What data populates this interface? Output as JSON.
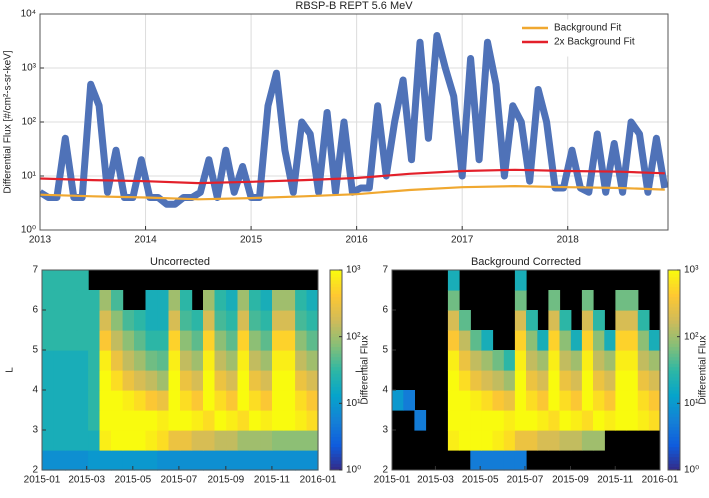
{
  "chart_data": [
    {
      "type": "line",
      "title": "RBSP-B REPT 5.6 MeV",
      "ylabel": "Differential Flux [#/cm²-s-sr-keV]",
      "yscale": "log",
      "grid": true,
      "legend": "upper right",
      "xlim": [
        2013,
        2018.95
      ],
      "xticks": [
        2013,
        2014,
        2015,
        2016,
        2017,
        2018
      ],
      "ylim": [
        1,
        10000
      ],
      "yticks": [
        {
          "value": 1,
          "label": "10⁰"
        },
        {
          "value": 10,
          "label": "10¹"
        },
        {
          "value": 100,
          "label": "10²"
        },
        {
          "value": 1000,
          "label": "10³"
        },
        {
          "value": 10000,
          "label": "10⁴"
        }
      ],
      "series": [
        {
          "color": "#4f72b8",
          "x": [
            2013,
            2013.08,
            2013.16,
            2013.24,
            2013.32,
            2013.4,
            2013.48,
            2013.56,
            2013.64,
            2013.72,
            2013.8,
            2013.88,
            2013.96,
            2014.04,
            2014.12,
            2014.2,
            2014.28,
            2014.36,
            2014.44,
            2014.52,
            2014.6,
            2014.68,
            2014.76,
            2014.84,
            2014.92,
            2015,
            2015.08,
            2015.16,
            2015.24,
            2015.32,
            2015.4,
            2015.48,
            2015.56,
            2015.64,
            2015.72,
            2015.8,
            2015.88,
            2015.96,
            2016.04,
            2016.12,
            2016.2,
            2016.28,
            2016.36,
            2016.44,
            2016.52,
            2016.6,
            2016.68,
            2016.76,
            2016.84,
            2016.92,
            2017,
            2017.08,
            2017.16,
            2017.24,
            2017.32,
            2017.4,
            2017.48,
            2017.56,
            2017.64,
            2017.72,
            2017.8,
            2017.88,
            2017.96,
            2018.04,
            2018.12,
            2018.2,
            2018.28,
            2018.36,
            2018.44,
            2018.52,
            2018.6,
            2018.68,
            2018.76,
            2018.84,
            2018.92
          ],
          "values": [
            5,
            4,
            4,
            50,
            4,
            4,
            500,
            200,
            5,
            30,
            4,
            4,
            20,
            4,
            4,
            3,
            3,
            4,
            4,
            5,
            20,
            4,
            30,
            5,
            15,
            4,
            4,
            200,
            800,
            30,
            5,
            100,
            60,
            5,
            150,
            5,
            100,
            5,
            6,
            6,
            200,
            10,
            100,
            600,
            20,
            3000,
            50,
            4000,
            1000,
            300,
            10,
            1500,
            20,
            3000,
            500,
            10,
            200,
            100,
            8,
            400,
            100,
            6,
            6,
            30,
            6,
            5,
            60,
            5,
            40,
            5,
            100,
            60,
            5,
            50,
            6
          ]
        },
        {
          "name": "Background Fit",
          "color": "#f0a830",
          "x": [
            2013,
            2013.5,
            2014,
            2014.5,
            2015,
            2015.5,
            2016,
            2016.5,
            2017,
            2017.5,
            2018,
            2018.5,
            2018.92
          ],
          "values": [
            4.5,
            4.2,
            4,
            3.7,
            3.9,
            4.2,
            4.6,
            5.5,
            6.2,
            6.5,
            6.2,
            6,
            5.6
          ]
        },
        {
          "name": "2x Background Fit",
          "color": "#e3202a",
          "x": [
            2013,
            2013.5,
            2014,
            2014.5,
            2015,
            2015.5,
            2016,
            2016.5,
            2017,
            2017.5,
            2018,
            2018.5,
            2018.92
          ],
          "values": [
            9,
            8.4,
            8,
            7.4,
            7.8,
            8.4,
            9.2,
            11,
            12.4,
            13,
            12.4,
            12,
            11.2
          ]
        }
      ]
    },
    {
      "type": "heatmap",
      "title": "Uncorrected",
      "ylabel": "L",
      "nan_color": "#000000",
      "colormap": [
        "#352a87",
        "#0f5cdd",
        "#1481d6",
        "#06a4ca",
        "#2eb7a4",
        "#87bf77",
        "#d1bb59",
        "#fec832",
        "#f9fb0e"
      ],
      "colorbar": {
        "label": "Differential Flux",
        "scale": "log",
        "lim": [
          1,
          1000
        ],
        "ticks": [
          {
            "value": 1,
            "label": "10⁰"
          },
          {
            "value": 10,
            "label": "10¹"
          },
          {
            "value": 100,
            "label": "10²"
          },
          {
            "value": 1000,
            "label": "10³"
          }
        ]
      },
      "xlim": [
        2015,
        2016
      ],
      "xticks": [
        {
          "value": 2015,
          "label": "2015-01"
        },
        {
          "value": 2015.162,
          "label": "2015-03"
        },
        {
          "value": 2015.329,
          "label": "2015-05"
        },
        {
          "value": 2015.496,
          "label": "2015-07"
        },
        {
          "value": 2015.666,
          "label": "2015-09"
        },
        {
          "value": 2015.833,
          "label": "2015-11"
        },
        {
          "value": 2016,
          "label": "2016-01"
        }
      ],
      "ylim": [
        2,
        7
      ],
      "yticks": [
        2,
        3,
        4,
        5,
        6,
        7
      ],
      "x": [
        2015.021,
        2015.063,
        2015.104,
        2015.146,
        2015.188,
        2015.229,
        2015.271,
        2015.313,
        2015.354,
        2015.396,
        2015.438,
        2015.479,
        2015.521,
        2015.563,
        2015.604,
        2015.646,
        2015.688,
        2015.729,
        2015.771,
        2015.813,
        2015.854,
        2015.896,
        2015.938,
        2015.979
      ],
      "y": [
        2.25,
        2.75,
        3.25,
        3.75,
        4.25,
        4.75,
        5.25,
        5.75,
        6.25,
        6.75
      ],
      "z": [
        [
          8,
          8,
          8,
          8,
          10,
          10,
          10,
          10,
          10,
          10,
          8,
          8,
          8,
          8,
          8,
          8,
          8,
          8,
          8,
          8,
          8,
          8,
          8,
          8
        ],
        [
          20,
          20,
          20,
          20,
          20,
          800,
          1000,
          1000,
          1000,
          800,
          600,
          300,
          300,
          200,
          200,
          150,
          150,
          100,
          100,
          100,
          80,
          80,
          80,
          80
        ],
        [
          20,
          20,
          20,
          20,
          30,
          1000,
          1000,
          1000,
          1000,
          1000,
          800,
          1000,
          1000,
          800,
          600,
          1000,
          800,
          600,
          1000,
          800,
          1000,
          1000,
          800,
          600
        ],
        [
          20,
          20,
          20,
          20,
          30,
          1000,
          1000,
          800,
          600,
          400,
          300,
          1000,
          600,
          400,
          1000,
          600,
          400,
          1000,
          600,
          400,
          1000,
          1000,
          600,
          400
        ],
        [
          20,
          20,
          20,
          20,
          30,
          1000,
          600,
          300,
          200,
          150,
          100,
          1000,
          300,
          200,
          1000,
          300,
          200,
          1000,
          300,
          200,
          1000,
          1000,
          300,
          200
        ],
        [
          20,
          20,
          20,
          20,
          30,
          800,
          300,
          150,
          100,
          60,
          50,
          800,
          150,
          100,
          800,
          150,
          100,
          800,
          150,
          100,
          800,
          800,
          150,
          100
        ],
        [
          30,
          30,
          30,
          30,
          30,
          400,
          150,
          80,
          50,
          30,
          30,
          500,
          80,
          50,
          500,
          80,
          50,
          500,
          80,
          50,
          500,
          500,
          80,
          50
        ],
        [
          30,
          30,
          30,
          30,
          30,
          200,
          80,
          40,
          30,
          20,
          20,
          200,
          40,
          30,
          200,
          40,
          30,
          200,
          40,
          30,
          200,
          200,
          40,
          30
        ],
        [
          30,
          30,
          30,
          30,
          30,
          100,
          40,
          null,
          null,
          20,
          20,
          100,
          30,
          null,
          100,
          30,
          20,
          100,
          30,
          20,
          100,
          100,
          30,
          20
        ],
        [
          30,
          30,
          30,
          30,
          null,
          null,
          null,
          null,
          null,
          null,
          null,
          null,
          null,
          null,
          null,
          null,
          null,
          null,
          null,
          null,
          null,
          null,
          null,
          null
        ]
      ]
    },
    {
      "type": "heatmap",
      "title": "Background Corrected",
      "ylabel": "L",
      "nan_color": "#000000",
      "colormap": [
        "#352a87",
        "#0f5cdd",
        "#1481d6",
        "#06a4ca",
        "#2eb7a4",
        "#87bf77",
        "#d1bb59",
        "#fec832",
        "#f9fb0e"
      ],
      "colorbar": {
        "label": "Differential Flux",
        "scale": "log",
        "lim": [
          1,
          1000
        ],
        "ticks": [
          {
            "value": 1,
            "label": "10⁰"
          },
          {
            "value": 10,
            "label": "10¹"
          },
          {
            "value": 100,
            "label": "10²"
          },
          {
            "value": 1000,
            "label": "10³"
          }
        ]
      },
      "xlim": [
        2015,
        2016
      ],
      "xticks": [
        {
          "value": 2015,
          "label": "2015-01"
        },
        {
          "value": 2015.162,
          "label": "2015-03"
        },
        {
          "value": 2015.329,
          "label": "2015-05"
        },
        {
          "value": 2015.496,
          "label": "2015-07"
        },
        {
          "value": 2015.666,
          "label": "2015-09"
        },
        {
          "value": 2015.833,
          "label": "2015-11"
        },
        {
          "value": 2016,
          "label": "2016-01"
        }
      ],
      "ylim": [
        2,
        7
      ],
      "yticks": [
        2,
        3,
        4,
        5,
        6,
        7
      ],
      "x": [
        2015.021,
        2015.063,
        2015.104,
        2015.146,
        2015.188,
        2015.229,
        2015.271,
        2015.313,
        2015.354,
        2015.396,
        2015.438,
        2015.479,
        2015.521,
        2015.563,
        2015.604,
        2015.646,
        2015.688,
        2015.729,
        2015.771,
        2015.813,
        2015.854,
        2015.896,
        2015.938,
        2015.979
      ],
      "y": [
        2.25,
        2.75,
        3.25,
        3.75,
        4.25,
        4.75,
        5.25,
        5.75,
        6.25,
        6.75
      ],
      "z": [
        [
          null,
          null,
          null,
          null,
          null,
          null,
          null,
          5,
          5,
          5,
          5,
          5,
          null,
          null,
          null,
          null,
          null,
          null,
          null,
          null,
          null,
          null,
          null,
          null
        ],
        [
          null,
          null,
          null,
          null,
          null,
          800,
          1000,
          1000,
          1000,
          800,
          600,
          300,
          300,
          200,
          200,
          150,
          150,
          100,
          100,
          null,
          null,
          null,
          null,
          null
        ],
        [
          null,
          null,
          5,
          null,
          null,
          1000,
          1000,
          1000,
          1000,
          1000,
          800,
          1000,
          1000,
          800,
          600,
          1000,
          800,
          600,
          1000,
          800,
          1000,
          1000,
          800,
          600
        ],
        [
          10,
          5,
          null,
          null,
          null,
          1000,
          1000,
          800,
          600,
          400,
          300,
          1000,
          600,
          400,
          1000,
          600,
          400,
          1000,
          600,
          400,
          1000,
          1000,
          600,
          400
        ],
        [
          null,
          null,
          null,
          null,
          null,
          1000,
          600,
          300,
          200,
          150,
          100,
          1000,
          300,
          200,
          1000,
          300,
          200,
          1000,
          300,
          200,
          1000,
          1000,
          300,
          200
        ],
        [
          null,
          null,
          null,
          null,
          null,
          800,
          300,
          150,
          100,
          60,
          30,
          800,
          150,
          100,
          800,
          150,
          100,
          800,
          150,
          100,
          800,
          800,
          150,
          100
        ],
        [
          null,
          null,
          null,
          null,
          null,
          400,
          150,
          50,
          20,
          null,
          null,
          500,
          80,
          20,
          500,
          80,
          20,
          500,
          80,
          20,
          500,
          500,
          80,
          20
        ],
        [
          null,
          null,
          null,
          null,
          null,
          200,
          50,
          null,
          null,
          null,
          null,
          200,
          30,
          null,
          200,
          30,
          null,
          200,
          30,
          null,
          200,
          200,
          30,
          null
        ],
        [
          null,
          null,
          null,
          null,
          null,
          60,
          null,
          null,
          null,
          null,
          null,
          60,
          null,
          null,
          60,
          null,
          null,
          60,
          null,
          null,
          60,
          60,
          null,
          null
        ],
        [
          null,
          null,
          null,
          null,
          null,
          20,
          null,
          null,
          null,
          null,
          null,
          20,
          null,
          null,
          null,
          null,
          null,
          null,
          null,
          null,
          null,
          null,
          null,
          null
        ]
      ]
    }
  ]
}
